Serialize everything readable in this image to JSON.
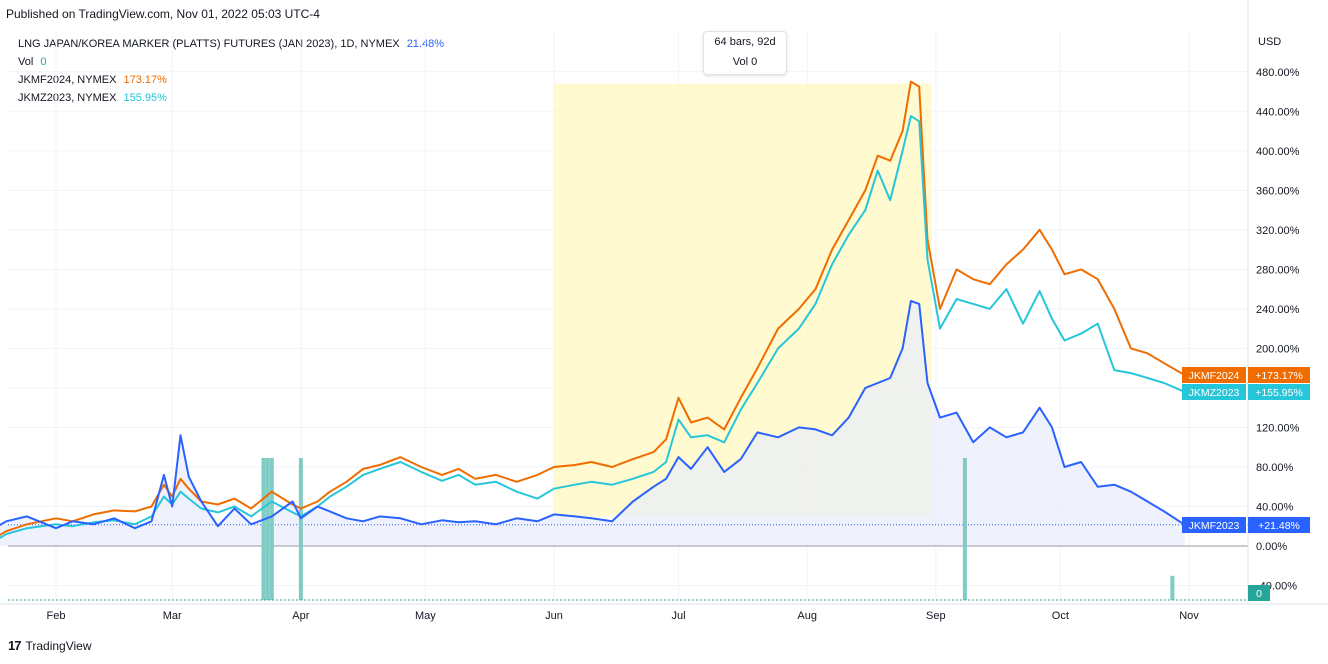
{
  "header": {
    "published_text": "Published on TradingView.com, Nov 01, 2022 05:03 UTC-4"
  },
  "legend": [
    {
      "name": "LNG JAPAN/KOREA MARKER (PLATTS) FUTURES (JAN 2023), 1D, NYMEX",
      "value": "21.48%",
      "color": "#2962ff"
    },
    {
      "name": "Vol",
      "value": "0",
      "color": "#26a69a"
    },
    {
      "name": "JKMF2024, NYMEX",
      "value": "173.17%",
      "color": "#ef6c00"
    },
    {
      "name": "JKMZ2023, NYMEX",
      "value": "155.95%",
      "color": "#26c6da"
    }
  ],
  "tooltip": {
    "line1": "64 bars, 92d",
    "line2": "Vol 0"
  },
  "footer": {
    "logo_text": "TradingView",
    "logo_mark": "17"
  },
  "colors": {
    "main": "#2962ff",
    "jkmf2024": "#ef6c00",
    "jkmz2023": "#26c6da",
    "volume": "#80cbc4",
    "range_highlight": "#fff9c4",
    "area_fill": "#e8ecfb"
  },
  "chart_data": {
    "type": "line",
    "currency_label": "USD",
    "y_unit": "%",
    "ylim": [
      -55,
      490
    ],
    "y_ticks": [
      "480.00%",
      "440.00%",
      "400.00%",
      "360.00%",
      "320.00%",
      "280.00%",
      "240.00%",
      "200.00%",
      "160.00%",
      "120.00%",
      "80.00%",
      "40.00%",
      "0.00%",
      "-40.00%"
    ],
    "y_tick_values": [
      480,
      440,
      400,
      360,
      320,
      280,
      240,
      200,
      160,
      120,
      80,
      40,
      0,
      -40
    ],
    "x_start_date": "2022-01-13",
    "x_end_date": "2022-10-31",
    "x_ticks": [
      {
        "label": "Feb",
        "date": "2022-02-01"
      },
      {
        "label": "Mar",
        "date": "2022-03-01"
      },
      {
        "label": "Apr",
        "date": "2022-04-01"
      },
      {
        "label": "May",
        "date": "2022-05-01"
      },
      {
        "label": "Jun",
        "date": "2022-06-01"
      },
      {
        "label": "Jul",
        "date": "2022-07-01"
      },
      {
        "label": "Aug",
        "date": "2022-08-01"
      },
      {
        "label": "Sep",
        "date": "2022-09-01"
      },
      {
        "label": "Oct",
        "date": "2022-10-01"
      },
      {
        "label": "Nov",
        "date": "2022-11-01"
      }
    ],
    "selection_range": {
      "from": "2022-06-01",
      "to": "2022-08-31"
    },
    "series": [
      {
        "name": "JKMF2024",
        "color": "#ef6c00",
        "last_label": "JKMF2024",
        "last_value_text": "+173.17%",
        "points": [
          [
            "2022-01-13",
            -5
          ],
          [
            "2022-01-16",
            5
          ],
          [
            "2022-01-20",
            15
          ],
          [
            "2022-01-25",
            22
          ],
          [
            "2022-02-01",
            28
          ],
          [
            "2022-02-05",
            25
          ],
          [
            "2022-02-10",
            32
          ],
          [
            "2022-02-15",
            36
          ],
          [
            "2022-02-20",
            35
          ],
          [
            "2022-02-24",
            40
          ],
          [
            "2022-02-27",
            62
          ],
          [
            "2022-03-01",
            50
          ],
          [
            "2022-03-03",
            68
          ],
          [
            "2022-03-05",
            58
          ],
          [
            "2022-03-08",
            45
          ],
          [
            "2022-03-12",
            42
          ],
          [
            "2022-03-16",
            48
          ],
          [
            "2022-03-20",
            38
          ],
          [
            "2022-03-25",
            55
          ],
          [
            "2022-03-30",
            42
          ],
          [
            "2022-04-01",
            38
          ],
          [
            "2022-04-05",
            45
          ],
          [
            "2022-04-08",
            55
          ],
          [
            "2022-04-12",
            65
          ],
          [
            "2022-04-16",
            78
          ],
          [
            "2022-04-20",
            82
          ],
          [
            "2022-04-25",
            90
          ],
          [
            "2022-04-30",
            80
          ],
          [
            "2022-05-05",
            72
          ],
          [
            "2022-05-09",
            78
          ],
          [
            "2022-05-13",
            68
          ],
          [
            "2022-05-18",
            72
          ],
          [
            "2022-05-23",
            65
          ],
          [
            "2022-05-28",
            72
          ],
          [
            "2022-06-01",
            80
          ],
          [
            "2022-06-06",
            82
          ],
          [
            "2022-06-10",
            85
          ],
          [
            "2022-06-15",
            80
          ],
          [
            "2022-06-20",
            88
          ],
          [
            "2022-06-25",
            95
          ],
          [
            "2022-06-28",
            108
          ],
          [
            "2022-07-01",
            150
          ],
          [
            "2022-07-04",
            125
          ],
          [
            "2022-07-08",
            130
          ],
          [
            "2022-07-12",
            118
          ],
          [
            "2022-07-16",
            150
          ],
          [
            "2022-07-20",
            180
          ],
          [
            "2022-07-25",
            220
          ],
          [
            "2022-07-30",
            240
          ],
          [
            "2022-08-03",
            260
          ],
          [
            "2022-08-07",
            300
          ],
          [
            "2022-08-11",
            330
          ],
          [
            "2022-08-15",
            360
          ],
          [
            "2022-08-18",
            395
          ],
          [
            "2022-08-21",
            390
          ],
          [
            "2022-08-24",
            420
          ],
          [
            "2022-08-26",
            470
          ],
          [
            "2022-08-28",
            465
          ],
          [
            "2022-08-30",
            310
          ],
          [
            "2022-09-02",
            240
          ],
          [
            "2022-09-06",
            280
          ],
          [
            "2022-09-10",
            270
          ],
          [
            "2022-09-14",
            265
          ],
          [
            "2022-09-18",
            285
          ],
          [
            "2022-09-22",
            300
          ],
          [
            "2022-09-26",
            320
          ],
          [
            "2022-09-29",
            300
          ],
          [
            "2022-10-02",
            275
          ],
          [
            "2022-10-06",
            280
          ],
          [
            "2022-10-10",
            270
          ],
          [
            "2022-10-14",
            240
          ],
          [
            "2022-10-18",
            200
          ],
          [
            "2022-10-22",
            195
          ],
          [
            "2022-10-26",
            185
          ],
          [
            "2022-10-31",
            173
          ]
        ]
      },
      {
        "name": "JKMZ2023",
        "color": "#26c6da",
        "last_label": "JKMZ2023",
        "last_value_text": "+155.95%",
        "points": [
          [
            "2022-01-13",
            -5
          ],
          [
            "2022-01-16",
            2
          ],
          [
            "2022-01-20",
            12
          ],
          [
            "2022-01-25",
            18
          ],
          [
            "2022-02-01",
            22
          ],
          [
            "2022-02-05",
            20
          ],
          [
            "2022-02-10",
            24
          ],
          [
            "2022-02-15",
            26
          ],
          [
            "2022-02-20",
            22
          ],
          [
            "2022-02-24",
            30
          ],
          [
            "2022-02-27",
            50
          ],
          [
            "2022-03-01",
            42
          ],
          [
            "2022-03-03",
            55
          ],
          [
            "2022-03-05",
            48
          ],
          [
            "2022-03-08",
            38
          ],
          [
            "2022-03-12",
            34
          ],
          [
            "2022-03-16",
            40
          ],
          [
            "2022-03-20",
            30
          ],
          [
            "2022-03-25",
            45
          ],
          [
            "2022-03-30",
            34
          ],
          [
            "2022-04-01",
            30
          ],
          [
            "2022-04-05",
            40
          ],
          [
            "2022-04-08",
            50
          ],
          [
            "2022-04-12",
            60
          ],
          [
            "2022-04-16",
            72
          ],
          [
            "2022-04-20",
            78
          ],
          [
            "2022-04-25",
            85
          ],
          [
            "2022-04-30",
            75
          ],
          [
            "2022-05-05",
            66
          ],
          [
            "2022-05-09",
            72
          ],
          [
            "2022-05-13",
            62
          ],
          [
            "2022-05-18",
            65
          ],
          [
            "2022-05-23",
            55
          ],
          [
            "2022-05-28",
            48
          ],
          [
            "2022-06-01",
            58
          ],
          [
            "2022-06-06",
            62
          ],
          [
            "2022-06-10",
            65
          ],
          [
            "2022-06-15",
            62
          ],
          [
            "2022-06-20",
            68
          ],
          [
            "2022-06-25",
            75
          ],
          [
            "2022-06-28",
            85
          ],
          [
            "2022-07-01",
            128
          ],
          [
            "2022-07-04",
            110
          ],
          [
            "2022-07-08",
            112
          ],
          [
            "2022-07-12",
            105
          ],
          [
            "2022-07-16",
            138
          ],
          [
            "2022-07-20",
            165
          ],
          [
            "2022-07-25",
            200
          ],
          [
            "2022-07-30",
            220
          ],
          [
            "2022-08-03",
            245
          ],
          [
            "2022-08-07",
            285
          ],
          [
            "2022-08-11",
            315
          ],
          [
            "2022-08-15",
            340
          ],
          [
            "2022-08-18",
            380
          ],
          [
            "2022-08-21",
            350
          ],
          [
            "2022-08-24",
            400
          ],
          [
            "2022-08-26",
            435
          ],
          [
            "2022-08-28",
            430
          ],
          [
            "2022-08-30",
            290
          ],
          [
            "2022-09-02",
            220
          ],
          [
            "2022-09-06",
            250
          ],
          [
            "2022-09-10",
            245
          ],
          [
            "2022-09-14",
            240
          ],
          [
            "2022-09-18",
            260
          ],
          [
            "2022-09-22",
            225
          ],
          [
            "2022-09-26",
            258
          ],
          [
            "2022-09-29",
            230
          ],
          [
            "2022-10-02",
            208
          ],
          [
            "2022-10-06",
            215
          ],
          [
            "2022-10-10",
            225
          ],
          [
            "2022-10-14",
            178
          ],
          [
            "2022-10-18",
            175
          ],
          [
            "2022-10-22",
            170
          ],
          [
            "2022-10-26",
            165
          ],
          [
            "2022-10-31",
            156
          ]
        ]
      },
      {
        "name": "LNG JAPAN/KOREA MARKER (PLATTS) FUTURES (JAN 2023)",
        "color": "#2962ff",
        "last_label": "JKMF2023",
        "last_value_text": "+21.48%",
        "points": [
          [
            "2022-01-13",
            5
          ],
          [
            "2022-01-16",
            15
          ],
          [
            "2022-01-20",
            25
          ],
          [
            "2022-01-25",
            30
          ],
          [
            "2022-02-01",
            18
          ],
          [
            "2022-02-05",
            25
          ],
          [
            "2022-02-10",
            22
          ],
          [
            "2022-02-15",
            28
          ],
          [
            "2022-02-20",
            18
          ],
          [
            "2022-02-24",
            25
          ],
          [
            "2022-02-27",
            72
          ],
          [
            "2022-03-01",
            40
          ],
          [
            "2022-03-03",
            112
          ],
          [
            "2022-03-05",
            70
          ],
          [
            "2022-03-08",
            45
          ],
          [
            "2022-03-12",
            20
          ],
          [
            "2022-03-16",
            38
          ],
          [
            "2022-03-20",
            22
          ],
          [
            "2022-03-25",
            30
          ],
          [
            "2022-03-30",
            45
          ],
          [
            "2022-04-01",
            28
          ],
          [
            "2022-04-05",
            40
          ],
          [
            "2022-04-08",
            35
          ],
          [
            "2022-04-12",
            28
          ],
          [
            "2022-04-16",
            25
          ],
          [
            "2022-04-20",
            30
          ],
          [
            "2022-04-25",
            28
          ],
          [
            "2022-04-30",
            22
          ],
          [
            "2022-05-05",
            26
          ],
          [
            "2022-05-09",
            24
          ],
          [
            "2022-05-13",
            25
          ],
          [
            "2022-05-18",
            22
          ],
          [
            "2022-05-23",
            28
          ],
          [
            "2022-05-28",
            25
          ],
          [
            "2022-06-01",
            32
          ],
          [
            "2022-06-06",
            30
          ],
          [
            "2022-06-10",
            28
          ],
          [
            "2022-06-15",
            25
          ],
          [
            "2022-06-20",
            45
          ],
          [
            "2022-06-25",
            60
          ],
          [
            "2022-06-28",
            68
          ],
          [
            "2022-07-01",
            90
          ],
          [
            "2022-07-04",
            78
          ],
          [
            "2022-07-08",
            100
          ],
          [
            "2022-07-12",
            75
          ],
          [
            "2022-07-16",
            88
          ],
          [
            "2022-07-20",
            115
          ],
          [
            "2022-07-25",
            110
          ],
          [
            "2022-07-30",
            120
          ],
          [
            "2022-08-03",
            118
          ],
          [
            "2022-08-07",
            112
          ],
          [
            "2022-08-11",
            130
          ],
          [
            "2022-08-15",
            160
          ],
          [
            "2022-08-18",
            165
          ],
          [
            "2022-08-21",
            170
          ],
          [
            "2022-08-24",
            200
          ],
          [
            "2022-08-26",
            248
          ],
          [
            "2022-08-28",
            245
          ],
          [
            "2022-08-30",
            165
          ],
          [
            "2022-09-02",
            130
          ],
          [
            "2022-09-06",
            135
          ],
          [
            "2022-09-10",
            105
          ],
          [
            "2022-09-14",
            120
          ],
          [
            "2022-09-18",
            110
          ],
          [
            "2022-09-22",
            115
          ],
          [
            "2022-09-26",
            140
          ],
          [
            "2022-09-29",
            120
          ],
          [
            "2022-10-02",
            80
          ],
          [
            "2022-10-06",
            85
          ],
          [
            "2022-10-10",
            60
          ],
          [
            "2022-10-14",
            62
          ],
          [
            "2022-10-18",
            55
          ],
          [
            "2022-10-22",
            45
          ],
          [
            "2022-10-26",
            35
          ],
          [
            "2022-10-31",
            21.48
          ]
        ]
      }
    ],
    "volume_bars": [
      {
        "date": "2022-03-23",
        "value": 1
      },
      {
        "date": "2022-03-24",
        "value": 1
      },
      {
        "date": "2022-03-25",
        "value": 1
      },
      {
        "date": "2022-04-01",
        "value": 1
      },
      {
        "date": "2022-09-08",
        "value": 1
      },
      {
        "date": "2022-10-28",
        "value": 0.17
      }
    ],
    "volume_last_text": "0"
  }
}
